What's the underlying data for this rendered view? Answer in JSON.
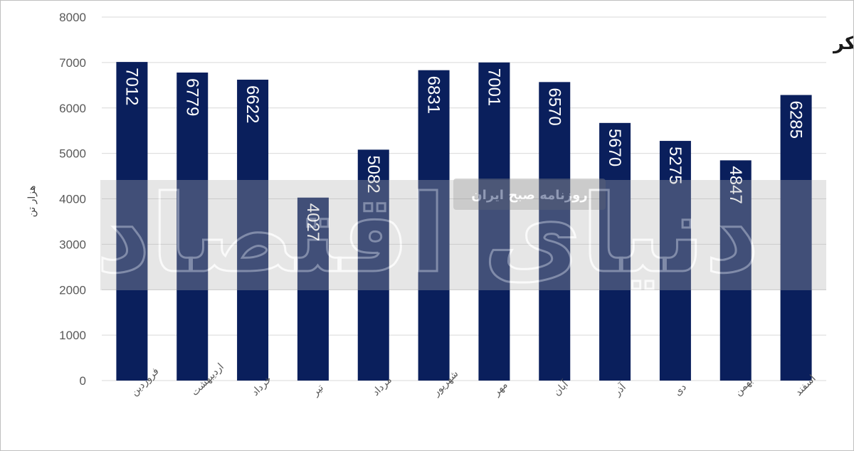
{
  "chart_data": {
    "type": "bar",
    "title": "تولید ماهانه کلینکر",
    "ylabel": "هزار تن",
    "xlabel": "",
    "categories": [
      "فروردین",
      "اردیبهشت",
      "خرداد",
      "تیر",
      "مرداد",
      "شهریور",
      "مهر",
      "آبان",
      "آذر",
      "دی",
      "بهمن",
      "اسفند"
    ],
    "values": [
      7012,
      6779,
      6622,
      4027,
      5082,
      6831,
      7001,
      6570,
      5670,
      5275,
      4847,
      6285
    ],
    "ylim": [
      0,
      8000
    ],
    "yticks": [
      0,
      1000,
      2000,
      3000,
      4000,
      5000,
      6000,
      7000,
      8000
    ],
    "grid": true,
    "legend": "none",
    "bar_color": "#0a1f5c",
    "data_labels": "inside-end-rotated"
  },
  "watermark": {
    "logo_text": "دنیای اقتصاد",
    "subtitle": "روزنامه صبح ایران"
  }
}
